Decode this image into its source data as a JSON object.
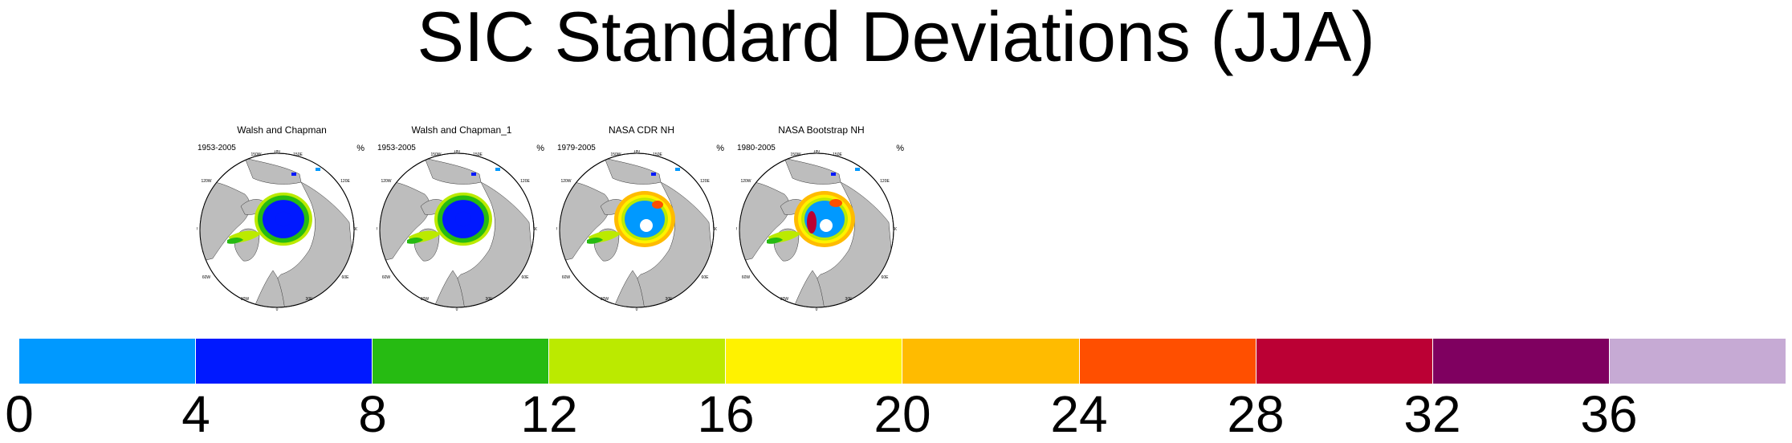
{
  "title": "SIC Standard Deviations (JJA)",
  "panels": [
    {
      "title": "Walsh and Chapman",
      "years": "1953-2005",
      "unit": "%"
    },
    {
      "title": "Walsh and Chapman_1",
      "years": "1953-2005",
      "unit": "%"
    },
    {
      "title": "NASA CDR NH",
      "years": "1979-2005",
      "unit": "%"
    },
    {
      "title": "NASA Bootstrap NH",
      "years": "1980-2005",
      "unit": "%"
    }
  ],
  "map_labels": {
    "lon_180": "180",
    "lon_150w": "150W",
    "lon_150e": "150E",
    "lon_120w": "120W",
    "lon_120e": "120E",
    "lon_90w": "90W",
    "lon_90e": "90E",
    "lon_60w": "60W",
    "lon_60e": "60E",
    "lon_30w": "30W",
    "lon_30e": "30E",
    "lon_0": "0"
  },
  "colorbar": {
    "colors": [
      "#0099ff",
      "#0019ff",
      "#26bb12",
      "#bbea00",
      "#fff200",
      "#ffbb00",
      "#ff4f00",
      "#bb0034",
      "#7f0060",
      "#c6aad4"
    ],
    "ticks": [
      "0",
      "4",
      "8",
      "12",
      "16",
      "20",
      "24",
      "28",
      "32",
      "36"
    ]
  },
  "map_colors": {
    "land": "#bdbdbd",
    "ocean": "#ffffff"
  }
}
